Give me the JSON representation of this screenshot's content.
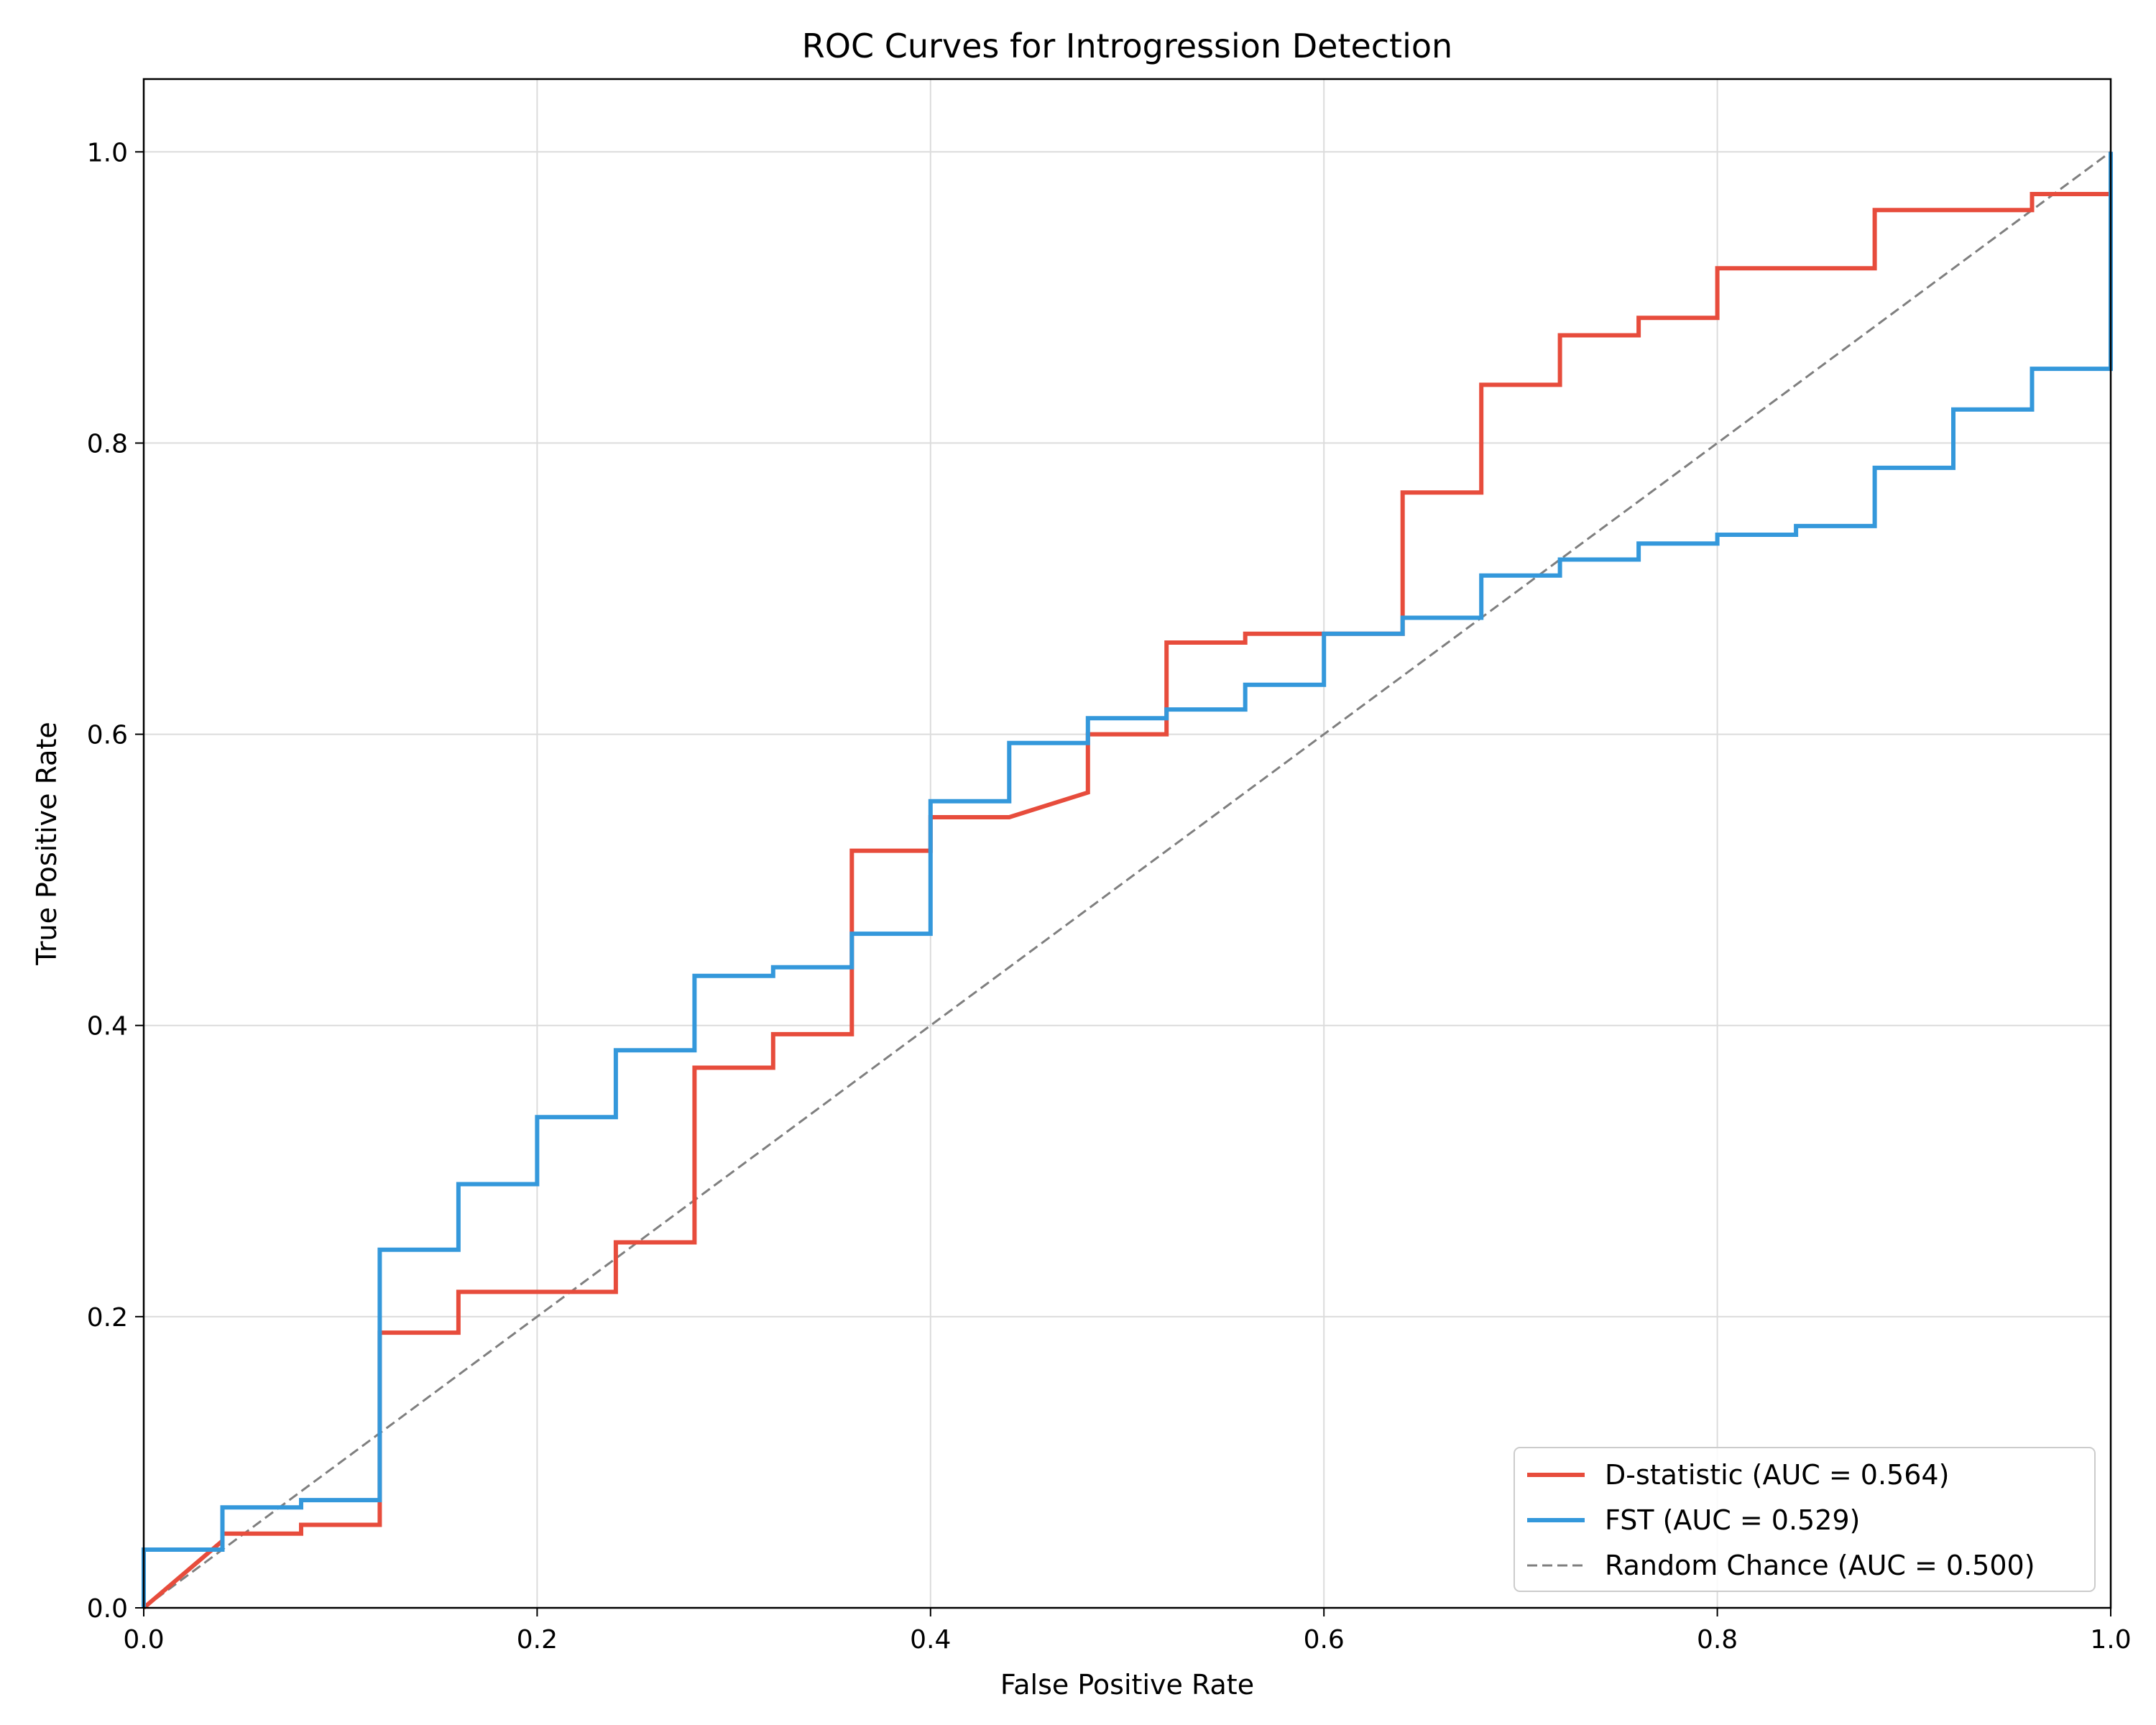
{
  "chart_data": {
    "type": "line",
    "title": "ROC Curves for Introgression Detection",
    "xlabel": "False Positive Rate",
    "ylabel": "True Positive Rate",
    "xlim": [
      0.0,
      1.0
    ],
    "ylim": [
      0.0,
      1.05
    ],
    "xticks": [
      0.0,
      0.2,
      0.4,
      0.6,
      0.8,
      1.0
    ],
    "yticks": [
      0.0,
      0.2,
      0.4,
      0.6,
      0.8,
      1.0
    ],
    "xtick_labels": [
      "0.0",
      "0.2",
      "0.4",
      "0.6",
      "0.8",
      "1.0"
    ],
    "ytick_labels": [
      "0.0",
      "0.2",
      "0.4",
      "0.6",
      "0.8",
      "1.0"
    ],
    "grid": true,
    "legend_position": "bottom-right",
    "series": [
      {
        "name": "D-statistic (AUC = 0.564)",
        "color": "#e74c3c",
        "style": "solid",
        "x": [
          0.0,
          0.04,
          0.04,
          0.08,
          0.08,
          0.12,
          0.12,
          0.16,
          0.16,
          0.24,
          0.24,
          0.28,
          0.28,
          0.32,
          0.32,
          0.36,
          0.36,
          0.4,
          0.4,
          0.44,
          0.48,
          0.48,
          0.52,
          0.52,
          0.56,
          0.56,
          0.6,
          0.64,
          0.64,
          0.68,
          0.68,
          0.72,
          0.72,
          0.76,
          0.76,
          0.8,
          0.8,
          0.88,
          0.88,
          0.96,
          0.96,
          1.0,
          1.0
        ],
        "y": [
          0.0,
          0.046,
          0.051,
          0.051,
          0.057,
          0.057,
          0.189,
          0.189,
          0.217,
          0.217,
          0.251,
          0.251,
          0.371,
          0.371,
          0.394,
          0.394,
          0.52,
          0.52,
          0.543,
          0.543,
          0.56,
          0.6,
          0.6,
          0.663,
          0.663,
          0.669,
          0.669,
          0.669,
          0.766,
          0.766,
          0.84,
          0.84,
          0.874,
          0.874,
          0.886,
          0.886,
          0.92,
          0.92,
          0.96,
          0.96,
          0.971,
          0.971,
          1.0
        ]
      },
      {
        "name": "FST (AUC = 0.529)",
        "color": "#3498db",
        "style": "solid",
        "x": [
          0.0,
          0.0,
          0.04,
          0.04,
          0.08,
          0.08,
          0.12,
          0.12,
          0.16,
          0.16,
          0.2,
          0.2,
          0.24,
          0.24,
          0.28,
          0.28,
          0.32,
          0.32,
          0.36,
          0.36,
          0.4,
          0.4,
          0.44,
          0.44,
          0.48,
          0.48,
          0.52,
          0.52,
          0.56,
          0.56,
          0.6,
          0.6,
          0.64,
          0.64,
          0.68,
          0.68,
          0.72,
          0.72,
          0.76,
          0.76,
          0.8,
          0.8,
          0.84,
          0.84,
          0.88,
          0.88,
          0.92,
          0.92,
          0.96,
          0.96,
          1.0,
          1.0
        ],
        "y": [
          0.0,
          0.04,
          0.04,
          0.069,
          0.069,
          0.074,
          0.074,
          0.246,
          0.246,
          0.291,
          0.291,
          0.337,
          0.337,
          0.383,
          0.383,
          0.434,
          0.434,
          0.44,
          0.44,
          0.463,
          0.463,
          0.554,
          0.554,
          0.594,
          0.594,
          0.611,
          0.611,
          0.617,
          0.617,
          0.634,
          0.634,
          0.669,
          0.669,
          0.68,
          0.68,
          0.709,
          0.709,
          0.72,
          0.72,
          0.731,
          0.731,
          0.737,
          0.737,
          0.743,
          0.743,
          0.783,
          0.783,
          0.823,
          0.823,
          0.851,
          0.851,
          1.0
        ]
      },
      {
        "name": "Random Chance (AUC = 0.500)",
        "color": "#7f7f7f",
        "style": "dashed",
        "x": [
          0.0,
          1.0
        ],
        "y": [
          0.0,
          1.0
        ]
      }
    ]
  }
}
